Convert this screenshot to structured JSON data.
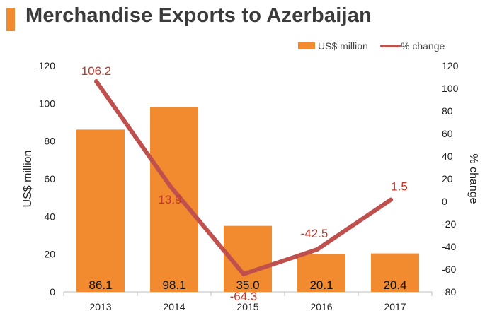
{
  "title": "Merchandise Exports to Azerbaijan",
  "colors": {
    "accent": "#f28a30",
    "bar": "#f28a30",
    "line": "#c0504d",
    "line_label": "#c0392b",
    "axis": "#bfbfbf"
  },
  "chart_data": {
    "type": "bar",
    "categories": [
      "2013",
      "2014",
      "2015",
      "2016",
      "2017"
    ],
    "series": [
      {
        "name": "US$ million",
        "type": "bar",
        "axis": "left",
        "values": [
          86.1,
          98.1,
          35.0,
          20.1,
          20.4
        ],
        "labels": [
          "86.1",
          "98.1",
          "35.0",
          "20.1",
          "20.4"
        ]
      },
      {
        "name": "% change",
        "type": "line",
        "axis": "right",
        "values": [
          106.2,
          13.9,
          -64.3,
          -42.5,
          1.5
        ],
        "labels": [
          "106.2",
          "13.9",
          "-64.3",
          "-42.5",
          "1.5"
        ]
      }
    ],
    "ylabel": "US$ million",
    "y2label": "% change",
    "ylim": [
      0,
      120
    ],
    "y2lim": [
      -80,
      120
    ],
    "yticks": [
      "0",
      "20",
      "40",
      "60",
      "80",
      "100",
      "120"
    ],
    "y2ticks": [
      "-80",
      "-60",
      "-40",
      "-20",
      "0",
      "20",
      "40",
      "60",
      "80",
      "100",
      "120"
    ],
    "legend": "top-right",
    "grid": false
  }
}
